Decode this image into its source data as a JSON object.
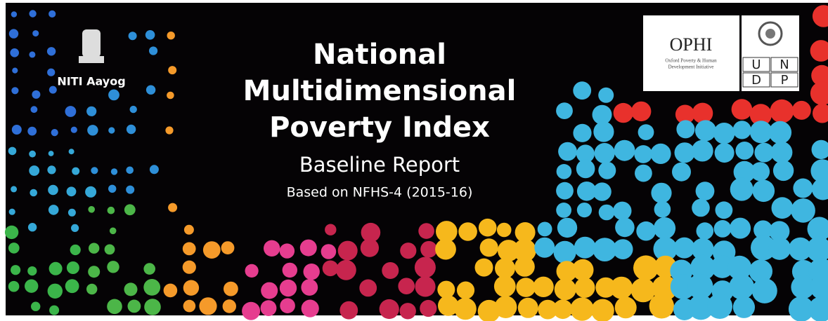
{
  "logo_left": {
    "label": "NITI Aayog"
  },
  "title": {
    "line1": "National",
    "line2": "Multidimensional",
    "line3": "Poverty Index"
  },
  "subtitle": "Baseline Report",
  "source_note": "Based on NFHS-4 (2015-16)",
  "ophi": {
    "name": "OPHI",
    "line1": "Oxford Poverty & Human",
    "line2": "Development Initiative"
  },
  "undp": {
    "letters": [
      "U",
      "N",
      "D",
      "P"
    ]
  }
}
